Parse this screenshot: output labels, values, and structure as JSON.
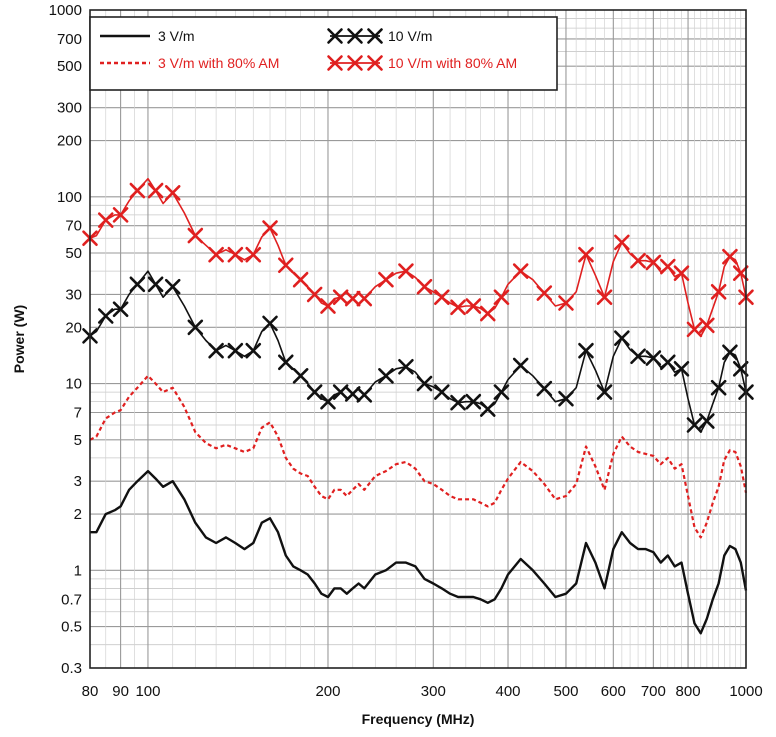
{
  "chart_data": {
    "type": "line",
    "xlabel": "Frequency (MHz)",
    "ylabel": "Power (W)",
    "x_scale": "log",
    "y_scale": "log",
    "xlim": [
      80,
      1000
    ],
    "ylim": [
      0.3,
      1000
    ],
    "x_ticks": [
      80,
      90,
      100,
      200,
      300,
      400,
      500,
      600,
      700,
      800,
      1000
    ],
    "x_tick_labels": [
      "80",
      "90",
      "100",
      "200",
      "300",
      "400",
      "500",
      "600",
      "700",
      "800",
      "1000"
    ],
    "y_ticks": [
      0.3,
      0.5,
      0.7,
      1,
      2,
      3,
      5,
      7,
      10,
      20,
      30,
      50,
      70,
      100,
      200,
      300,
      500,
      700,
      1000
    ],
    "y_tick_labels": [
      "0.3",
      "0.5",
      "0.7",
      "1",
      "2",
      "3",
      "5",
      "7",
      "10",
      "20",
      "30",
      "50",
      "70",
      "100",
      "200",
      "300",
      "500",
      "700",
      "1000"
    ],
    "grid": true,
    "legend_position": "top-left",
    "colors": {
      "black": "#111111",
      "red": "#e02020"
    },
    "x": [
      80,
      82,
      85,
      88,
      90,
      93,
      96,
      100,
      103,
      106,
      110,
      115,
      120,
      125,
      130,
      135,
      140,
      145,
      150,
      155,
      160,
      165,
      170,
      175,
      180,
      185,
      190,
      195,
      200,
      205,
      210,
      215,
      220,
      225,
      230,
      240,
      250,
      260,
      270,
      280,
      290,
      300,
      310,
      320,
      330,
      340,
      350,
      360,
      370,
      380,
      390,
      400,
      420,
      440,
      460,
      480,
      500,
      520,
      540,
      560,
      580,
      600,
      620,
      640,
      660,
      680,
      700,
      720,
      740,
      760,
      780,
      800,
      820,
      840,
      860,
      880,
      900,
      920,
      940,
      960,
      980,
      1000
    ],
    "series": [
      {
        "name": "3 V/m",
        "style": "solid-black",
        "values": [
          1.6,
          1.6,
          2.0,
          2.1,
          2.2,
          2.7,
          3.0,
          3.4,
          3.1,
          2.8,
          3.0,
          2.4,
          1.8,
          1.5,
          1.4,
          1.5,
          1.4,
          1.3,
          1.4,
          1.8,
          1.9,
          1.6,
          1.2,
          1.05,
          1.0,
          0.95,
          0.85,
          0.75,
          0.72,
          0.8,
          0.8,
          0.75,
          0.8,
          0.85,
          0.8,
          0.95,
          1.0,
          1.1,
          1.1,
          1.05,
          0.9,
          0.85,
          0.8,
          0.75,
          0.72,
          0.72,
          0.72,
          0.7,
          0.67,
          0.7,
          0.8,
          0.95,
          1.15,
          1.0,
          0.85,
          0.72,
          0.75,
          0.85,
          1.4,
          1.1,
          0.8,
          1.3,
          1.6,
          1.4,
          1.3,
          1.3,
          1.25,
          1.1,
          1.2,
          1.05,
          1.1,
          0.75,
          0.52,
          0.46,
          0.55,
          0.7,
          0.85,
          1.2,
          1.35,
          1.3,
          1.1,
          0.78
        ]
      },
      {
        "name": "3 V/m with 80% AM",
        "style": "dotted-red",
        "values": [
          5.0,
          5.2,
          6.5,
          7.0,
          7.2,
          8.5,
          9.5,
          11.0,
          10.0,
          9.0,
          9.5,
          7.5,
          5.5,
          4.8,
          4.5,
          4.7,
          4.5,
          4.3,
          4.5,
          5.8,
          6.2,
          5.2,
          4.0,
          3.5,
          3.3,
          3.2,
          2.8,
          2.5,
          2.4,
          2.7,
          2.7,
          2.5,
          2.7,
          2.9,
          2.7,
          3.2,
          3.4,
          3.7,
          3.8,
          3.5,
          3.0,
          2.9,
          2.7,
          2.5,
          2.4,
          2.4,
          2.4,
          2.3,
          2.2,
          2.3,
          2.7,
          3.1,
          3.8,
          3.4,
          2.9,
          2.4,
          2.5,
          2.9,
          4.6,
          3.6,
          2.7,
          4.2,
          5.2,
          4.6,
          4.3,
          4.2,
          4.1,
          3.7,
          4.0,
          3.5,
          3.7,
          2.5,
          1.7,
          1.5,
          1.8,
          2.3,
          2.8,
          3.9,
          4.4,
          4.3,
          3.6,
          2.6
        ]
      },
      {
        "name": "10 V/m",
        "style": "cross-black",
        "values": [
          18,
          19,
          23,
          25,
          25,
          30,
          34,
          40,
          34,
          29,
          33,
          26,
          20,
          17,
          15,
          16,
          15,
          14,
          15,
          19,
          21,
          17,
          13,
          12,
          11,
          10,
          9,
          8.3,
          8,
          8.7,
          9,
          8.3,
          8.8,
          9.4,
          8.7,
          10.2,
          11,
          12,
          12.3,
          11.5,
          10,
          9.6,
          9,
          8.3,
          7.9,
          8,
          8,
          7.8,
          7.3,
          7.8,
          9,
          10.5,
          12.5,
          11,
          9.4,
          8,
          8.3,
          9.5,
          15,
          11.8,
          9,
          14,
          17.5,
          15.2,
          14,
          14,
          13.7,
          12.2,
          13,
          11.5,
          12,
          8.3,
          6,
          5.5,
          6.3,
          7.8,
          9.5,
          13,
          14.7,
          14.2,
          12,
          9
        ]
      },
      {
        "name": "10 V/m with 80% AM",
        "style": "cross-red",
        "values": [
          60,
          62,
          75,
          80,
          80,
          95,
          108,
          125,
          108,
          92,
          105,
          82,
          62,
          55,
          49,
          52,
          49,
          46,
          49,
          61,
          68,
          55,
          43,
          39,
          36,
          33,
          30,
          27,
          26,
          28.5,
          29,
          27,
          28.5,
          30.5,
          28.5,
          33,
          36,
          39,
          40,
          37,
          33,
          31,
          29,
          27,
          25.6,
          26,
          26,
          25.3,
          23.7,
          25.3,
          29,
          34,
          40,
          36,
          30.5,
          26,
          27,
          31,
          49,
          38,
          29,
          45,
          57,
          49.5,
          45.5,
          45.5,
          44.5,
          39.6,
          42.3,
          37.4,
          39,
          27,
          19.5,
          17.9,
          20.5,
          25.3,
          31,
          42.3,
          47.8,
          46,
          39,
          29
        ]
      }
    ]
  }
}
